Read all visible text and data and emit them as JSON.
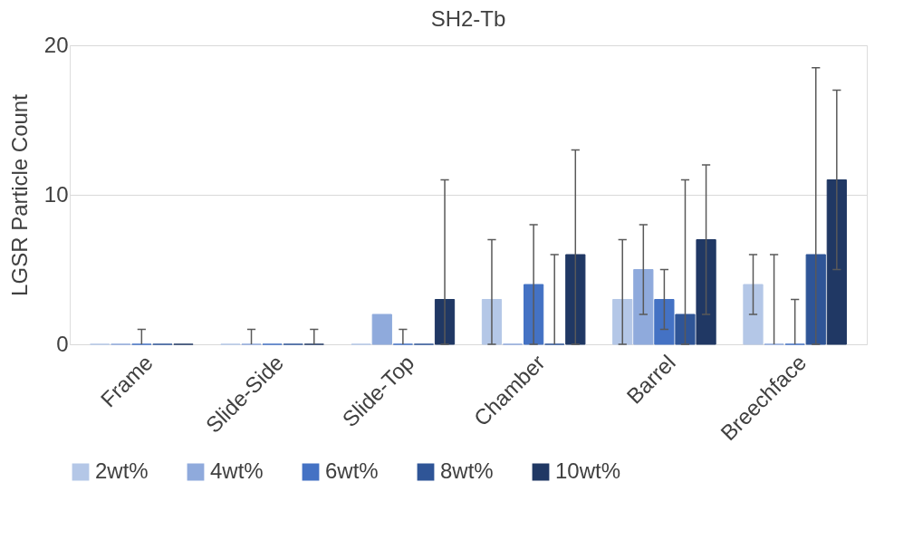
{
  "chart_data": {
    "type": "bar",
    "title": "SH2-Tb",
    "ylabel": "LGSR Particle Count",
    "categories": [
      "Frame",
      "Slide-Side",
      "Slide-Top",
      "Chamber",
      "Barrel",
      "Breechface"
    ],
    "series": [
      {
        "name": "2wt%",
        "color": "#b4c7e7",
        "values": [
          0,
          0,
          0,
          3,
          3,
          4
        ],
        "errors": [
          null,
          null,
          null,
          [
            0,
            7
          ],
          [
            0,
            7
          ],
          [
            2,
            6
          ]
        ]
      },
      {
        "name": "4wt%",
        "color": "#8faadc",
        "values": [
          0,
          0,
          2,
          0,
          5,
          0
        ],
        "errors": [
          null,
          [
            0,
            1
          ],
          null,
          null,
          [
            2,
            8
          ],
          [
            0,
            6
          ]
        ]
      },
      {
        "name": "6wt%",
        "color": "#4472c4",
        "values": [
          0,
          0,
          0,
          4,
          3,
          0
        ],
        "errors": [
          [
            0,
            1
          ],
          null,
          [
            0,
            1
          ],
          [
            0,
            8
          ],
          [
            1,
            5
          ],
          [
            0,
            3
          ]
        ]
      },
      {
        "name": "8wt%",
        "color": "#2f5597",
        "values": [
          0,
          0,
          0,
          0,
          2,
          6
        ],
        "errors": [
          null,
          null,
          null,
          [
            0,
            6
          ],
          [
            0,
            11
          ],
          [
            0,
            18.5
          ]
        ]
      },
      {
        "name": "10wt%",
        "color": "#203864",
        "values": [
          0,
          0,
          3,
          6,
          7,
          11
        ],
        "errors": [
          null,
          [
            0,
            1
          ],
          [
            0,
            11
          ],
          [
            0,
            13
          ],
          [
            2,
            12
          ],
          [
            5,
            17
          ]
        ]
      }
    ],
    "ylim": [
      0,
      20
    ],
    "yticks": [
      0,
      10,
      20
    ],
    "grid": "y",
    "legend": "bottom"
  }
}
